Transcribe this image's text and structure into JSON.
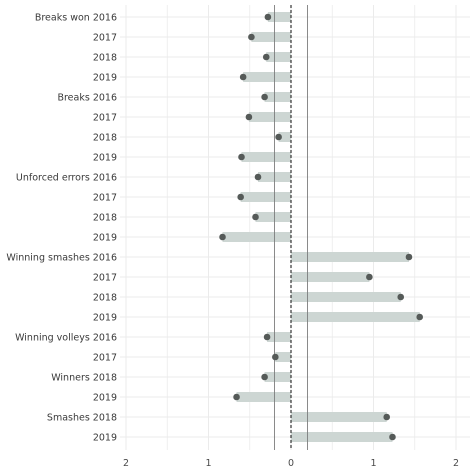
{
  "chart_data": {
    "type": "bar",
    "orientation": "horizontal",
    "style": "lollipop",
    "categories": [
      "Breaks won 2016",
      "2017",
      "2018",
      "2019",
      "Breaks 2016",
      "2017",
      "2018",
      "2019",
      "Unforced errors 2016",
      "2017",
      "2018",
      "2019",
      "Winning smashes 2016",
      "2017",
      "2018",
      "2019",
      "Winning volleys 2016",
      "2017",
      "Winners 2018",
      "2019",
      "Smashes 2018",
      "2019"
    ],
    "values": [
      -0.28,
      -0.48,
      -0.3,
      -0.58,
      -0.32,
      -0.51,
      -0.15,
      -0.6,
      -0.4,
      -0.61,
      -0.43,
      -0.83,
      1.43,
      0.95,
      1.33,
      1.56,
      -0.29,
      -0.19,
      -0.32,
      -0.66,
      1.16,
      1.23
    ],
    "xticks": [
      -2,
      -1,
      0,
      1,
      2
    ],
    "xtick_labels": [
      "2",
      "1",
      "0",
      "1",
      "2"
    ],
    "xlim": [
      -2.0,
      2.0
    ],
    "reference_lines": [
      -0.2,
      0,
      0.2
    ],
    "grid": true,
    "colors": {
      "bar": "#cdd6d3",
      "point": "#555a58",
      "grid": "#ebebeb",
      "reference": "#7d7d7d",
      "zero_line": "#333333"
    },
    "title": "",
    "xlabel": "",
    "ylabel": ""
  }
}
